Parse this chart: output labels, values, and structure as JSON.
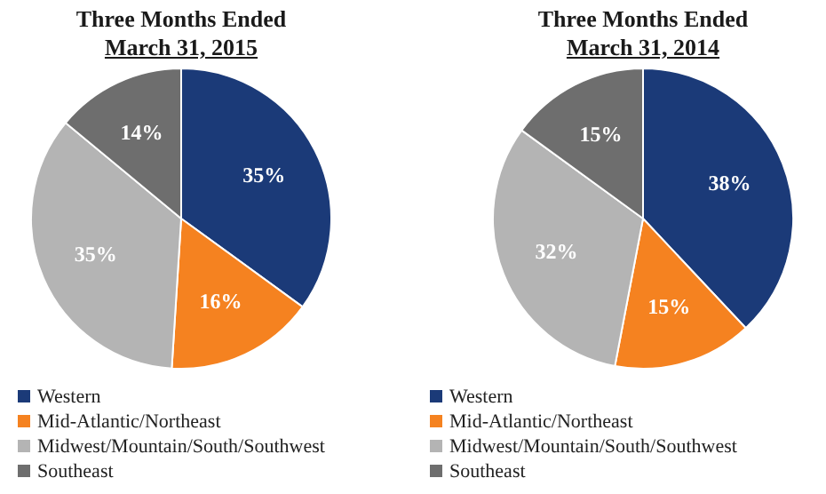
{
  "chart_data": [
    {
      "type": "pie",
      "title": "Three Months Ended",
      "subtitle": "March 31, 2015",
      "categories": [
        "Western",
        "Mid-Atlantic/Northeast",
        "Midwest/Mountain/South/Southwest",
        "Southeast"
      ],
      "values": [
        35,
        16,
        35,
        14
      ],
      "colors": [
        "#1b3a78",
        "#f58220",
        "#b4b4b4",
        "#6e6e6e"
      ],
      "value_labels": [
        "35%",
        "16%",
        "35%",
        "14%"
      ],
      "legend": "bottom left"
    },
    {
      "type": "pie",
      "title": "Three Months Ended",
      "subtitle": "March 31, 2014",
      "categories": [
        "Western",
        "Mid-Atlantic/Northeast",
        "Midwest/Mountain/South/Southwest",
        "Southeast"
      ],
      "values": [
        38,
        15,
        32,
        15
      ],
      "colors": [
        "#1b3a78",
        "#f58220",
        "#b4b4b4",
        "#6e6e6e"
      ],
      "value_labels": [
        "38%",
        "15%",
        "32%",
        "15%"
      ],
      "legend": "bottom left"
    }
  ]
}
